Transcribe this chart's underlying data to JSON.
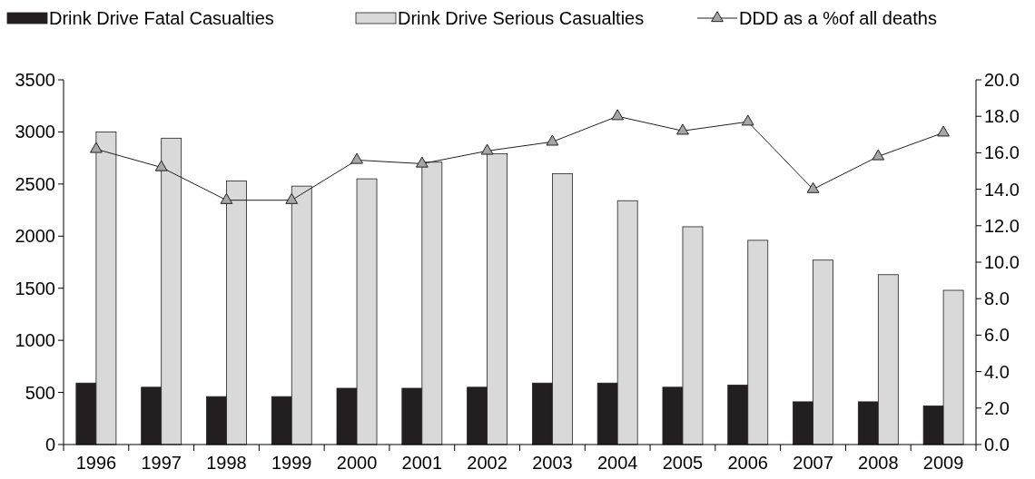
{
  "chart_data": {
    "type": "bar",
    "categories": [
      "1996",
      "1997",
      "1998",
      "1999",
      "2000",
      "2001",
      "2002",
      "2003",
      "2004",
      "2005",
      "2006",
      "2007",
      "2008",
      "2009"
    ],
    "series": [
      {
        "name": "Drink Drive Fatal Casualties",
        "color": "#231f20",
        "values": [
          590,
          550,
          460,
          460,
          540,
          540,
          550,
          590,
          590,
          550,
          570,
          410,
          410,
          370
        ]
      },
      {
        "name": "Drink Drive Serious Casualties",
        "color": "#d9d9d9",
        "values": [
          3000,
          2940,
          2530,
          2480,
          2550,
          2710,
          2790,
          2600,
          2340,
          2090,
          1960,
          1770,
          1630,
          1480
        ]
      },
      {
        "name": "DDD as a %of all deaths",
        "type": "line",
        "axis": "y2",
        "color": "#231f20",
        "marker": "triangle",
        "values": [
          16.2,
          15.2,
          13.4,
          13.4,
          15.6,
          15.4,
          16.1,
          16.6,
          18.0,
          17.2,
          17.7,
          14.0,
          15.8,
          17.1
        ]
      }
    ],
    "ylim": [
      0,
      3500
    ],
    "yticks": [
      0,
      500,
      1000,
      1500,
      2000,
      2500,
      3000,
      3500
    ],
    "y2lim": [
      0,
      20
    ],
    "y2ticks": [
      {
        "value": 0,
        "label": "0.0"
      },
      {
        "value": 2,
        "label": "2.0"
      },
      {
        "value": 4,
        "label": "4.0"
      },
      {
        "value": 6,
        "label": "6.0"
      },
      {
        "value": 8,
        "label": "8.0"
      },
      {
        "value": 10,
        "label": "10.0"
      },
      {
        "value": 12,
        "label": "12.0"
      },
      {
        "value": 14,
        "label": "14.0"
      },
      {
        "value": 16,
        "label": "16.0"
      },
      {
        "value": 18,
        "label": "18.0"
      },
      {
        "value": 20,
        "label": "20.0"
      }
    ],
    "grid": false,
    "legend": "top"
  }
}
